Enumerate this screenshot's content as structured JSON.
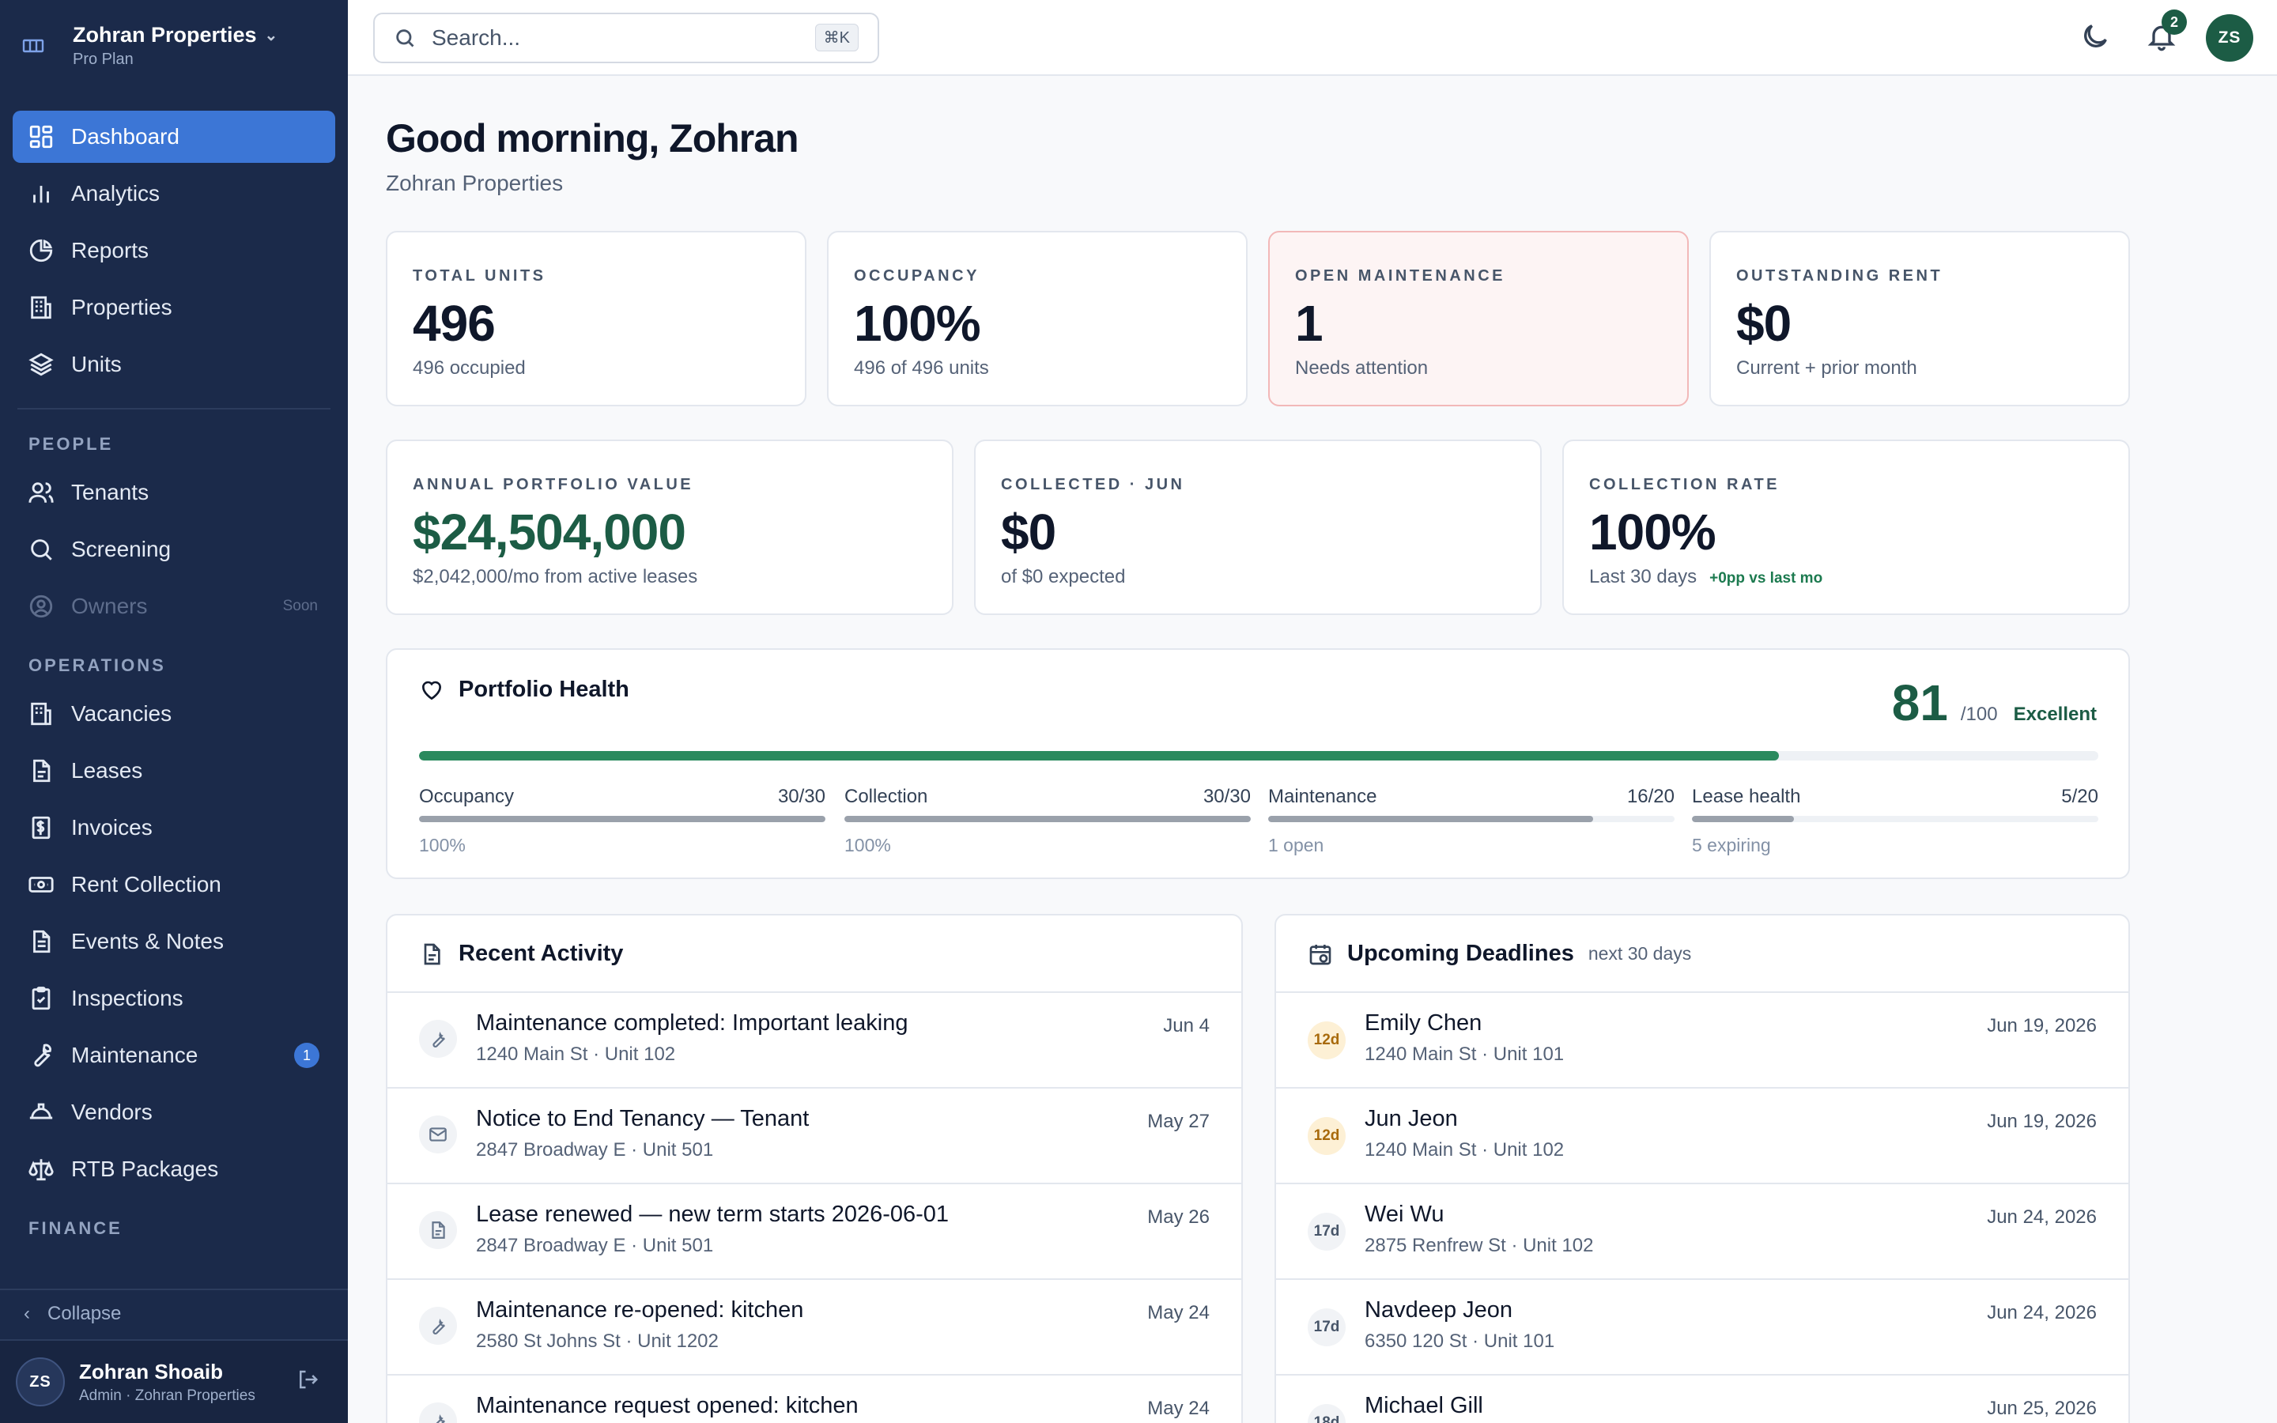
{
  "org": {
    "name": "Zohran Properties",
    "plan": "Pro Plan"
  },
  "nav": {
    "main": [
      {
        "label": "Dashboard",
        "icon": "dashboard-icon",
        "active": true
      },
      {
        "label": "Analytics",
        "icon": "bar-chart-icon"
      },
      {
        "label": "Reports",
        "icon": "pie-chart-icon"
      },
      {
        "label": "Properties",
        "icon": "building-icon"
      },
      {
        "label": "Units",
        "icon": "layers-icon"
      }
    ],
    "people_label": "PEOPLE",
    "people": [
      {
        "label": "Tenants",
        "icon": "users-icon"
      },
      {
        "label": "Screening",
        "icon": "search-icon"
      },
      {
        "label": "Owners",
        "icon": "user-circle-icon",
        "soon": "Soon"
      }
    ],
    "operations_label": "OPERATIONS",
    "operations": [
      {
        "label": "Vacancies",
        "icon": "building-icon"
      },
      {
        "label": "Leases",
        "icon": "file-icon"
      },
      {
        "label": "Invoices",
        "icon": "dollar-receipt-icon"
      },
      {
        "label": "Rent Collection",
        "icon": "banknote-icon"
      },
      {
        "label": "Events & Notes",
        "icon": "note-icon"
      },
      {
        "label": "Inspections",
        "icon": "clipboard-check-icon"
      },
      {
        "label": "Maintenance",
        "icon": "wrench-icon",
        "badge": "1"
      },
      {
        "label": "Vendors",
        "icon": "hard-hat-icon"
      },
      {
        "label": "RTB Packages",
        "icon": "scale-icon"
      }
    ],
    "finance_label": "FINANCE",
    "collapse_label": "Collapse"
  },
  "user": {
    "initials": "ZS",
    "name": "Zohran Shoaib",
    "role": "Admin · Zohran Properties"
  },
  "topbar": {
    "search_placeholder": "Search...",
    "search_shortcut": "⌘K",
    "notification_count": "2",
    "avatar_initials": "ZS"
  },
  "header": {
    "greeting": "Good morning, Zohran",
    "subtitle": "Zohran Properties"
  },
  "stats_top": [
    {
      "label": "TOTAL UNITS",
      "value": "496",
      "sub": "496 occupied"
    },
    {
      "label": "OCCUPANCY",
      "value": "100%",
      "sub": "496 of 496 units"
    },
    {
      "label": "OPEN MAINTENANCE",
      "value": "1",
      "sub": "Needs attention",
      "alert": true
    },
    {
      "label": "OUTSTANDING RENT",
      "value": "$0",
      "sub": "Current + prior month"
    }
  ],
  "stats_bottom": [
    {
      "label": "ANNUAL PORTFOLIO VALUE",
      "value": "$24,504,000",
      "sub": "$2,042,000/mo from active leases"
    },
    {
      "label": "COLLECTED · JUN",
      "value": "$0",
      "sub": "of $0 expected"
    },
    {
      "label": "COLLECTION RATE",
      "value": "100%",
      "sub": "Last 30 days",
      "delta": "+0pp vs last mo"
    }
  ],
  "portfolio_health": {
    "title": "Portfolio Health",
    "score": "81",
    "score_max": "/100",
    "score_label": "Excellent",
    "score_fraction": 0.81,
    "metrics": [
      {
        "label": "Occupancy",
        "score": "30/30",
        "note": "100%",
        "fraction": 1.0
      },
      {
        "label": "Collection",
        "score": "30/30",
        "note": "100%",
        "fraction": 1.0
      },
      {
        "label": "Maintenance",
        "score": "16/20",
        "note": "1 open",
        "fraction": 0.8
      },
      {
        "label": "Lease health",
        "score": "5/20",
        "note": "5 expiring",
        "fraction": 0.25
      }
    ]
  },
  "recent_activity": {
    "title": "Recent Activity",
    "items": [
      {
        "icon": "wrench-icon",
        "title": "Maintenance completed: Important leaking",
        "sub": "1240 Main St · Unit 102",
        "date": "Jun 4"
      },
      {
        "icon": "mail-icon",
        "title": "Notice to End Tenancy — Tenant",
        "sub": "2847 Broadway E · Unit 501",
        "date": "May 27"
      },
      {
        "icon": "file-icon",
        "title": "Lease renewed — new term starts 2026-06-01",
        "sub": "2847 Broadway E · Unit 501",
        "date": "May 26"
      },
      {
        "icon": "wrench-icon",
        "title": "Maintenance re-opened: kitchen",
        "sub": "2580 St Johns St · Unit 1202",
        "date": "May 24"
      },
      {
        "icon": "wrench-icon",
        "title": "Maintenance request opened: kitchen",
        "sub": "",
        "date": "May 24"
      }
    ]
  },
  "upcoming_deadlines": {
    "title": "Upcoming Deadlines",
    "note": "next 30 days",
    "items": [
      {
        "days": "12d",
        "name": "Emily Chen",
        "sub": "1240 Main St · Unit 101",
        "date": "Jun 19, 2026",
        "urgent": true
      },
      {
        "days": "12d",
        "name": "Jun Jeon",
        "sub": "1240 Main St · Unit 102",
        "date": "Jun 19, 2026",
        "urgent": true
      },
      {
        "days": "17d",
        "name": "Wei Wu",
        "sub": "2875 Renfrew St · Unit 102",
        "date": "Jun 24, 2026",
        "urgent": false
      },
      {
        "days": "17d",
        "name": "Navdeep Jeon",
        "sub": "6350 120 St · Unit 101",
        "date": "Jun 24, 2026",
        "urgent": false
      },
      {
        "days": "18d",
        "name": "Michael Gill",
        "sub": "",
        "date": "Jun 25, 2026",
        "urgent": false
      }
    ]
  },
  "colors": {
    "sidebar_bg": "#1b2a4a",
    "accent": "#3c76d6",
    "brand_green": "#1c5c45",
    "alert_bg": "#fdf4f4",
    "alert_border": "#f2b8b8"
  }
}
